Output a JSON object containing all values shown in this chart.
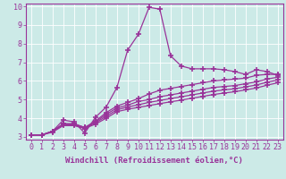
{
  "title": "",
  "xlabel": "Windchill (Refroidissement éolien,°C)",
  "ylabel": "",
  "bg_color": "#cceae7",
  "line_color": "#993399",
  "grid_color": "#ffffff",
  "xlim": [
    -0.5,
    23.5
  ],
  "ylim": [
    2.85,
    10.15
  ],
  "yticks": [
    3,
    4,
    5,
    6,
    7,
    8,
    9,
    10
  ],
  "xticks": [
    0,
    1,
    2,
    3,
    4,
    5,
    6,
    7,
    8,
    9,
    10,
    11,
    12,
    13,
    14,
    15,
    16,
    17,
    18,
    19,
    20,
    21,
    22,
    23
  ],
  "lines": [
    [
      3.1,
      3.1,
      3.3,
      3.9,
      3.8,
      3.2,
      4.05,
      4.6,
      5.65,
      7.65,
      8.5,
      9.95,
      9.85,
      7.35,
      6.8,
      6.65,
      6.65,
      6.65,
      6.6,
      6.5,
      6.35,
      6.6,
      6.5,
      6.3
    ],
    [
      3.1,
      3.1,
      3.3,
      3.7,
      3.7,
      3.5,
      3.85,
      4.3,
      4.65,
      4.85,
      5.05,
      5.3,
      5.5,
      5.6,
      5.7,
      5.8,
      5.9,
      6.0,
      6.05,
      6.1,
      6.15,
      6.3,
      6.35,
      6.35
    ],
    [
      3.1,
      3.1,
      3.3,
      3.7,
      3.7,
      3.5,
      3.8,
      4.2,
      4.55,
      4.7,
      4.9,
      5.0,
      5.15,
      5.25,
      5.35,
      5.45,
      5.55,
      5.65,
      5.7,
      5.75,
      5.85,
      5.95,
      6.1,
      6.2
    ],
    [
      3.1,
      3.1,
      3.3,
      3.65,
      3.65,
      3.45,
      3.75,
      4.1,
      4.45,
      4.6,
      4.72,
      4.85,
      4.95,
      5.05,
      5.15,
      5.25,
      5.35,
      5.45,
      5.52,
      5.58,
      5.68,
      5.78,
      5.93,
      6.05
    ],
    [
      3.1,
      3.1,
      3.25,
      3.6,
      3.6,
      3.45,
      3.68,
      4.0,
      4.35,
      4.48,
      4.58,
      4.68,
      4.78,
      4.88,
      4.97,
      5.07,
      5.17,
      5.27,
      5.35,
      5.42,
      5.52,
      5.62,
      5.77,
      5.9
    ]
  ],
  "marker": "+",
  "markersize": 5,
  "markeredgewidth": 1.2,
  "linewidth": 0.9,
  "xlabel_fontsize": 6.5,
  "tick_fontsize": 6.0
}
